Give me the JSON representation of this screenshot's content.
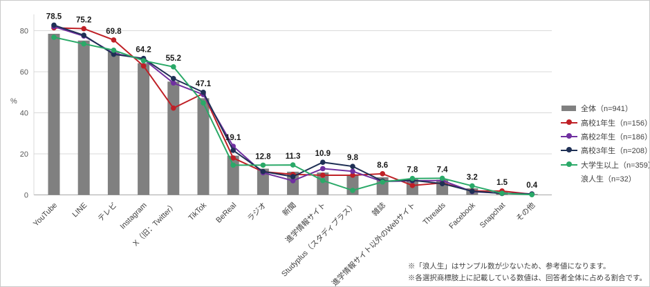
{
  "chart_data": {
    "type": "bar+line",
    "title": "",
    "ylabel": "%",
    "ylim": [
      0,
      88
    ],
    "yticks": [
      0,
      20,
      40,
      60,
      80
    ],
    "grid": true,
    "legend_position": "right",
    "categories": [
      "YouTube",
      "LINE",
      "テレビ",
      "Instagram",
      "X（旧：Twitter）",
      "TikTok",
      "BeReal",
      "ラジオ",
      "新聞",
      "進学情報サイト",
      "Studyplus（スタディプラス）",
      "雑誌",
      "進学情報サイト以外のWebサイト",
      "Threads",
      "Facebook",
      "Snapchat",
      "その他"
    ],
    "bar_series": {
      "name": "全体（n=941）",
      "color": "#808080",
      "values": [
        78.5,
        75.2,
        69.8,
        64.2,
        55.2,
        47.1,
        19.1,
        12.8,
        11.3,
        10.9,
        9.8,
        8.6,
        7.8,
        7.4,
        3.2,
        1.5,
        0.4
      ]
    },
    "data_labels": [
      "78.5",
      "75.2",
      "69.8",
      "64.2",
      "55.2",
      "47.1",
      "19.1",
      "12.8",
      "11.3",
      "10.9",
      "9.8",
      "8.6",
      "7.8",
      "7.4",
      "3.2",
      "1.5",
      "0.4"
    ],
    "line_series": [
      {
        "name": "高校1年生（n=156）",
        "color": "#bf2026",
        "values": [
          81.4,
          81.0,
          75.5,
          62.8,
          42.3,
          49.4,
          18.0,
          11.3,
          10.0,
          9.6,
          9.6,
          10.3,
          4.6,
          5.8,
          1.9,
          1.9,
          0.3
        ]
      },
      {
        "name": "高校2年生（n=186）",
        "color": "#7030a0",
        "values": [
          82.0,
          77.4,
          69.0,
          66.1,
          54.5,
          48.9,
          23.7,
          10.8,
          6.9,
          12.8,
          11.5,
          6.5,
          6.9,
          7.0,
          1.6,
          0.8,
          0.5
        ]
      },
      {
        "name": "高校3年生（n=208）",
        "color": "#1f3055",
        "values": [
          82.7,
          77.8,
          68.5,
          66.5,
          56.7,
          50.0,
          21.7,
          11.4,
          8.9,
          15.9,
          13.9,
          6.7,
          7.1,
          5.5,
          1.8,
          0.7,
          0.4
        ]
      },
      {
        "name": "大学生以上（n=359）",
        "color": "#2aa968",
        "values": [
          76.8,
          73.6,
          70.5,
          65.4,
          62.4,
          44.8,
          14.5,
          14.5,
          14.6,
          7.0,
          2.2,
          6.3,
          8.0,
          8.1,
          4.4,
          0.8,
          0.1
        ]
      }
    ],
    "extra_legend": [
      "浪人生（n=32）"
    ]
  },
  "footnotes": [
    "※「浪人生」はサンプル数が少ないため、参考値になります。",
    "※各選択商標肢上に記載している数値は、回答者全体に占める割合です。"
  ],
  "colors": {
    "bar": "#808080",
    "grid": "#d9d9d9",
    "axis": "#a6a6a6",
    "tick_text": "#595959",
    "category_text": "#404040",
    "data_label": "#1a1a1a"
  }
}
